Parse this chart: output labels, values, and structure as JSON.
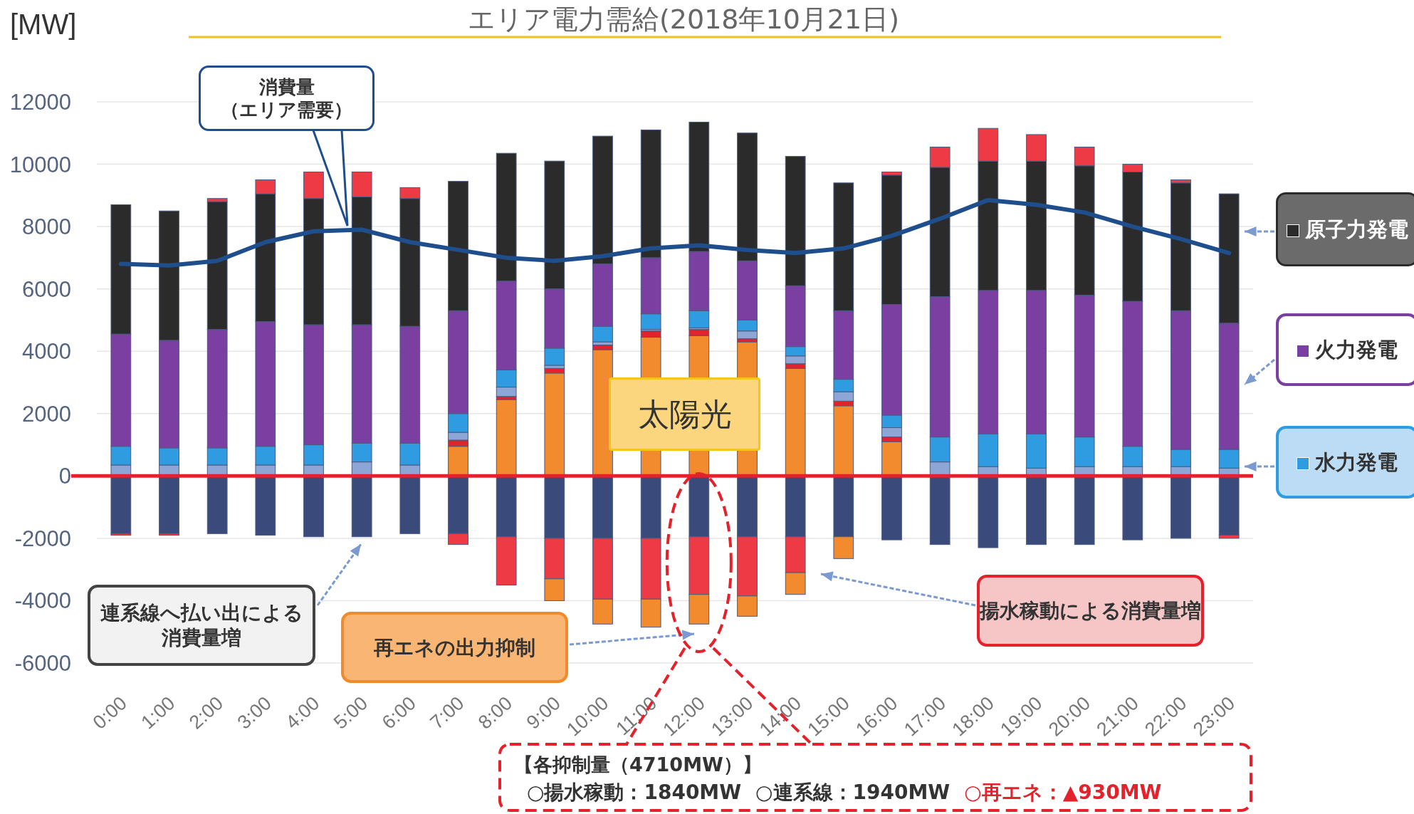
{
  "chart_data": {
    "type": "bar",
    "stacked": true,
    "title": "エリア電力需給(2018年10月21日)",
    "ylabel": "[MW]",
    "categories": [
      "0:00",
      "1:00",
      "2:00",
      "3:00",
      "4:00",
      "5:00",
      "6:00",
      "7:00",
      "8:00",
      "9:00",
      "10:00",
      "11:00",
      "12:00",
      "13:00",
      "14:00",
      "15:00",
      "16:00",
      "17:00",
      "18:00",
      "19:00",
      "20:00",
      "21:00",
      "22:00",
      "23:00"
    ],
    "legend": "right",
    "ylim": [
      -6000,
      12000
    ],
    "yticks": [
      -6000,
      -4000,
      -2000,
      0,
      2000,
      4000,
      6000,
      8000,
      10000,
      12000
    ],
    "grid": "y",
    "ref_lines": [
      {
        "axis": "y",
        "value": 0,
        "color": "#e3222b"
      }
    ],
    "series": [
      {
        "name": "太陽光",
        "color": "#f28a2e",
        "values": [
          0,
          0,
          0,
          0,
          0,
          0,
          0,
          950,
          2450,
          3300,
          4050,
          4450,
          4500,
          4300,
          3450,
          2250,
          1100,
          0,
          0,
          0,
          0,
          0,
          0,
          0
        ]
      },
      {
        "color": "#e3222b",
        "values": [
          0,
          0,
          0,
          0,
          0,
          0,
          0,
          200,
          100,
          150,
          150,
          200,
          200,
          100,
          150,
          150,
          150,
          0,
          0,
          0,
          0,
          0,
          0,
          0
        ]
      },
      {
        "color": "#8ea6d6",
        "values": [
          350,
          350,
          350,
          350,
          350,
          450,
          350,
          250,
          300,
          100,
          100,
          50,
          50,
          250,
          250,
          300,
          300,
          450,
          300,
          250,
          300,
          300,
          300,
          250
        ]
      },
      {
        "name": "水力発電",
        "color": "#2f9be0",
        "values": [
          600,
          550,
          550,
          600,
          650,
          600,
          700,
          600,
          550,
          550,
          500,
          500,
          550,
          350,
          300,
          400,
          400,
          800,
          1050,
          1100,
          950,
          650,
          550,
          600
        ]
      },
      {
        "name": "火力発電",
        "color": "#7a3fa0",
        "values": [
          3600,
          3450,
          3800,
          4000,
          3850,
          3800,
          3750,
          3300,
          2850,
          1900,
          2000,
          1800,
          1900,
          1900,
          1950,
          2200,
          3550,
          4500,
          4600,
          4600,
          4550,
          4650,
          4450,
          4050
        ]
      },
      {
        "name": "原子力発電",
        "color": "#2b2b2b",
        "values": [
          4150,
          4150,
          4100,
          4100,
          4050,
          4100,
          4100,
          4150,
          4100,
          4100,
          4100,
          4100,
          4150,
          4100,
          4150,
          4100,
          4150,
          4150,
          4150,
          4150,
          4150,
          4150,
          4100,
          4150
        ]
      },
      {
        "color": "#ee3a44",
        "values": [
          0,
          0,
          100,
          450,
          850,
          800,
          350,
          0,
          0,
          0,
          0,
          0,
          0,
          0,
          0,
          0,
          100,
          650,
          1050,
          850,
          600,
          250,
          100,
          0
        ]
      },
      {
        "color": "#3a4a7a",
        "values": [
          -1850,
          -1850,
          -1850,
          -1900,
          -1950,
          -1950,
          -1850,
          -1850,
          -1950,
          -2000,
          -2000,
          -2000,
          -1950,
          -1950,
          -1950,
          -1950,
          -2050,
          -2200,
          -2300,
          -2200,
          -2200,
          -2050,
          -2000,
          -1900
        ]
      },
      {
        "color": "#ee3a44",
        "values": [
          -50,
          -50,
          0,
          0,
          0,
          0,
          0,
          -350,
          -1550,
          -1300,
          -1950,
          -1950,
          -1850,
          -1900,
          -1150,
          0,
          0,
          0,
          0,
          0,
          0,
          0,
          0,
          -100
        ]
      },
      {
        "color": "#f28a2e",
        "values": [
          0,
          0,
          0,
          0,
          0,
          0,
          0,
          0,
          0,
          -700,
          -800,
          -900,
          -950,
          -650,
          -700,
          -700,
          0,
          0,
          0,
          0,
          0,
          0,
          0,
          0
        ]
      },
      {
        "name": "消費量（エリア需要）",
        "type": "line",
        "color": "#1f4e8c",
        "values": [
          6800,
          6750,
          6900,
          7500,
          7850,
          7900,
          7500,
          7250,
          7000,
          6900,
          7050,
          7300,
          7400,
          7250,
          7150,
          7300,
          7700,
          8250,
          8850,
          8700,
          8450,
          8000,
          7600,
          7150
        ]
      }
    ],
    "annotations": [
      "連系線へ払い出による消費量増",
      "再エネの出力抑制",
      "揚水稼動による消費量増",
      "【各抑制量（4710MW）】",
      "○揚水稼動：1840MW",
      "○連系線：1940MW",
      "○再エネ：▲930MW"
    ]
  }
}
